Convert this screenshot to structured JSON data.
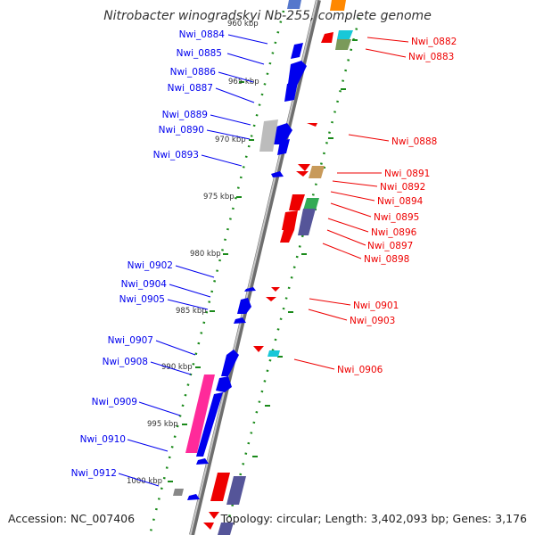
{
  "title": "Nitrobacter winogradskyi Nb-255, complete genome",
  "footer": {
    "accession": "Accession: NC_007406",
    "summary": "Topology: circular; Length: 3,402,093 bp; Genes: 3,176"
  },
  "colors": {
    "plus_strand": "#0000ee",
    "minus_strand": "#ee0000",
    "backbone": "#8a8a8a",
    "tick_track": "#1a8a1a",
    "pseudo": "#ff2a9a"
  },
  "scale": {
    "ticks": [
      {
        "label": "960 kbp",
        "kbp": 960
      },
      {
        "label": "965 kbp",
        "kbp": 965
      },
      {
        "label": "970 kbp",
        "kbp": 970
      },
      {
        "label": "975 kbp",
        "kbp": 975
      },
      {
        "label": "980 kbp",
        "kbp": 980
      },
      {
        "label": "985 kbp",
        "kbp": 985
      },
      {
        "label": "990 kbp",
        "kbp": 990
      },
      {
        "label": "995 kbp",
        "kbp": 995
      },
      {
        "label": "1000 kbp",
        "kbp": 1000
      }
    ]
  },
  "genes_plus": [
    {
      "name": "Nwi_0884"
    },
    {
      "name": "Nwi_0885"
    },
    {
      "name": "Nwi_0886"
    },
    {
      "name": "Nwi_0887"
    },
    {
      "name": "Nwi_0889"
    },
    {
      "name": "Nwi_0890"
    },
    {
      "name": "Nwi_0893"
    },
    {
      "name": "Nwi_0902"
    },
    {
      "name": "Nwi_0904"
    },
    {
      "name": "Nwi_0905"
    },
    {
      "name": "Nwi_0907"
    },
    {
      "name": "Nwi_0908"
    },
    {
      "name": "Nwi_0909"
    },
    {
      "name": "Nwi_0910"
    },
    {
      "name": "Nwi_0912"
    }
  ],
  "genes_minus": [
    {
      "name": "Nwi_0882"
    },
    {
      "name": "Nwi_0883"
    },
    {
      "name": "Nwi_0888"
    },
    {
      "name": "Nwi_0891"
    },
    {
      "name": "Nwi_0892"
    },
    {
      "name": "Nwi_0894"
    },
    {
      "name": "Nwi_0895"
    },
    {
      "name": "Nwi_0896"
    },
    {
      "name": "Nwi_0897"
    },
    {
      "name": "Nwi_0898"
    },
    {
      "name": "Nwi_0901"
    },
    {
      "name": "Nwi_0903"
    },
    {
      "name": "Nwi_0906"
    }
  ]
}
